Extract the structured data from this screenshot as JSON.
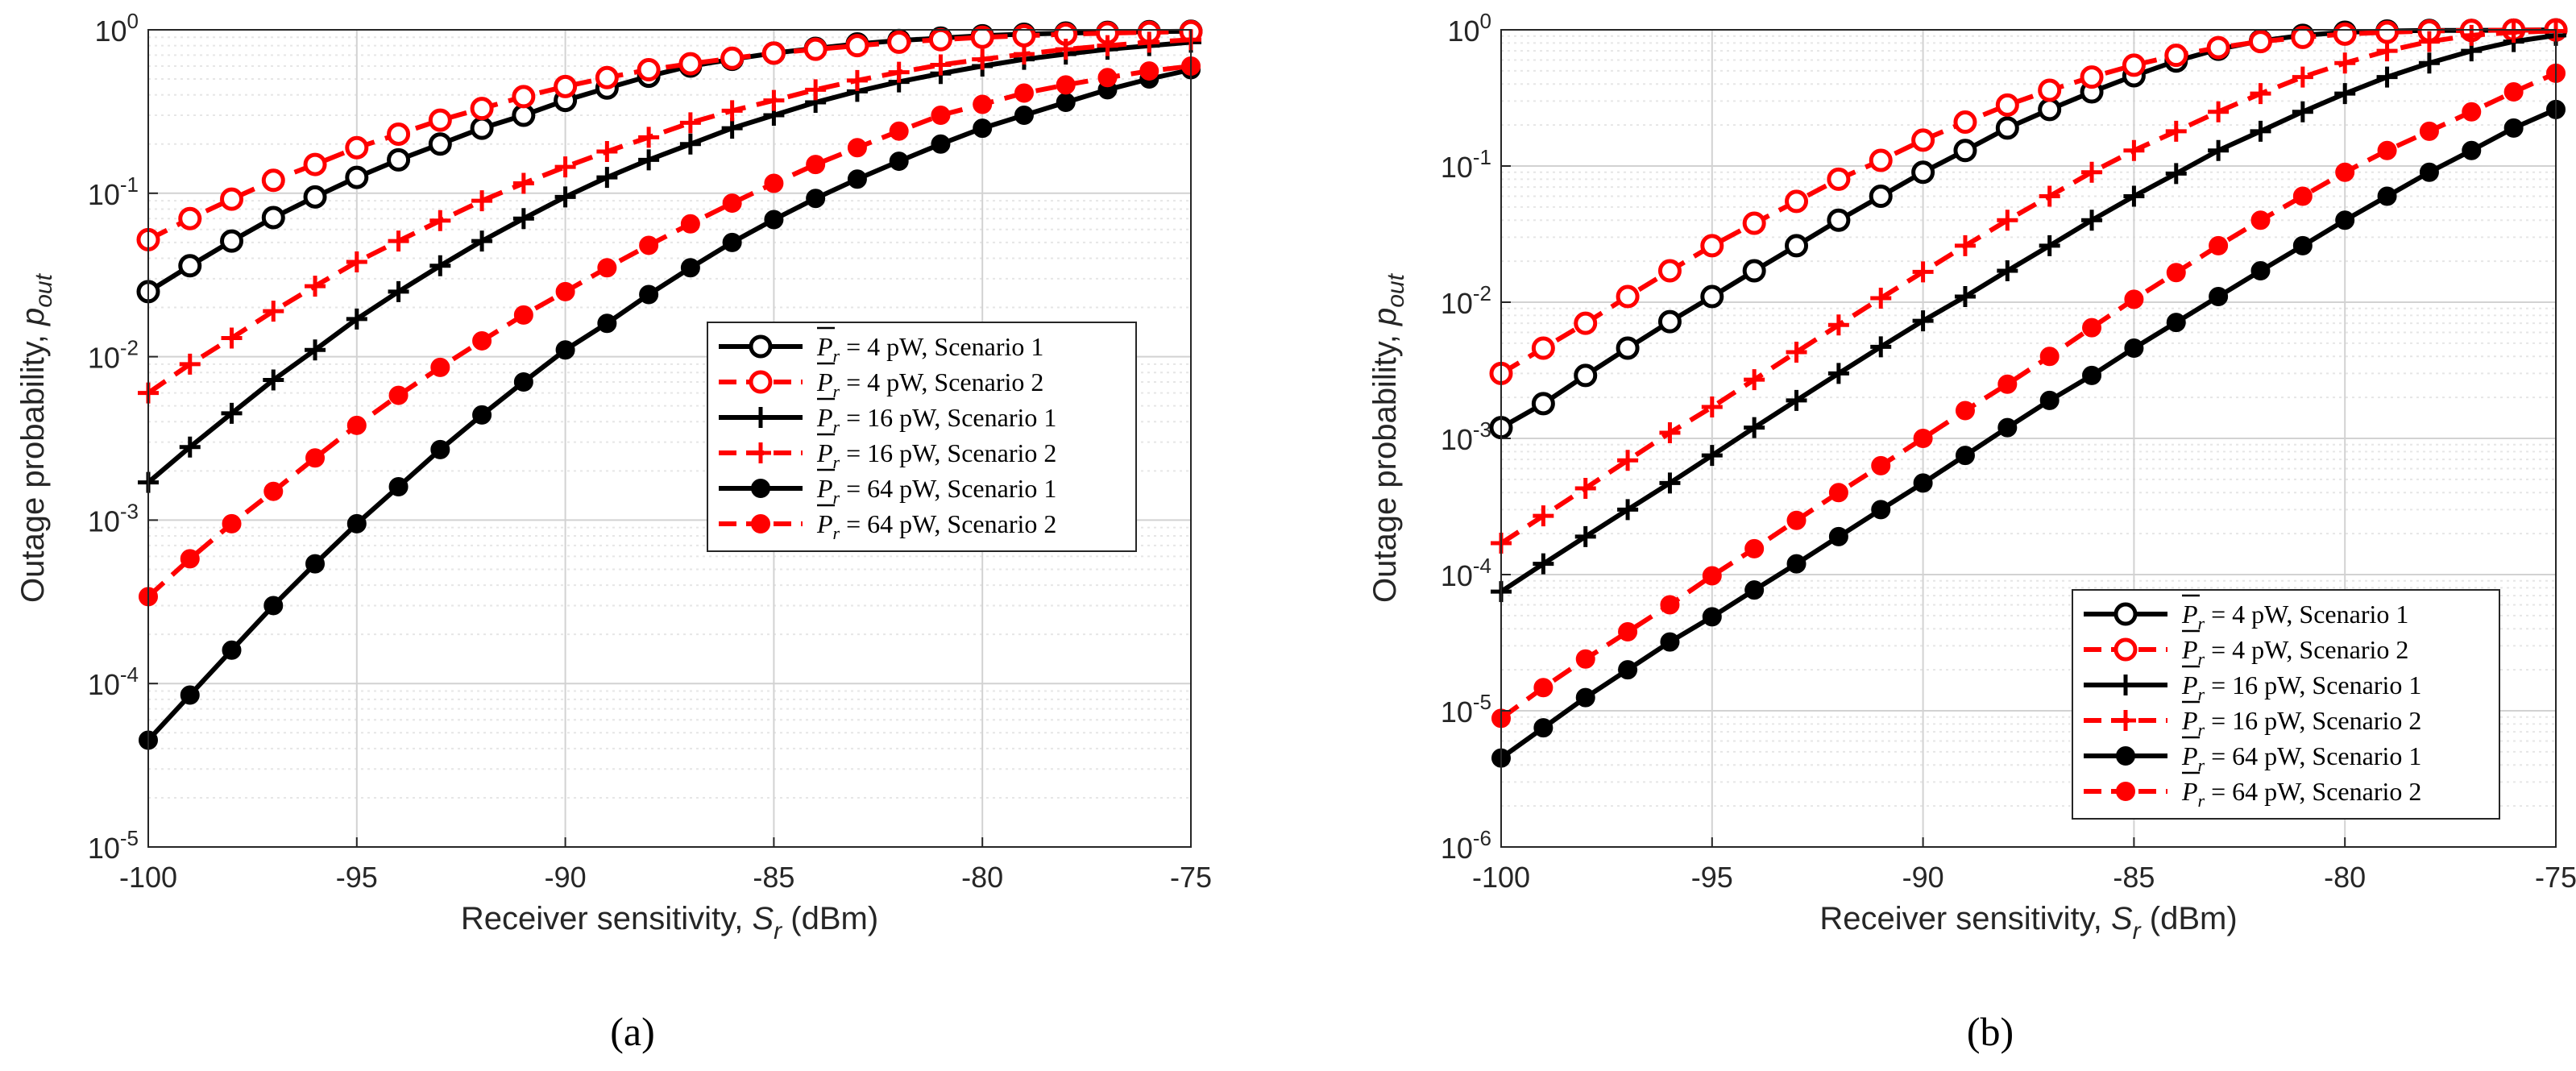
{
  "colors": {
    "black": "#000000",
    "red": "#ff0000",
    "grid_major": "#d2d2d2",
    "grid_minor": "#e6e6e6"
  },
  "chart_data": [
    {
      "type": "line",
      "panel_label": "(a)",
      "xlabel_main": "Receiver sensitivity, ",
      "xlabel_var": "S",
      "xlabel_sub": "r",
      "xlabel_unit": " (dBm)",
      "ylabel_main": "Outage probability, ",
      "ylabel_var": "p",
      "ylabel_sub": "out",
      "xlim": [
        -100,
        -75
      ],
      "ylim_log10": [
        -5,
        0
      ],
      "x_ticks": [
        -100,
        -95,
        -90,
        -85,
        -80,
        -75
      ],
      "x_tick_labels": [
        "-100",
        "-95",
        "-90",
        "-85",
        "-80",
        "-75"
      ],
      "y_tick_exponents": [
        -5,
        -4,
        -3,
        -2,
        -1,
        0
      ],
      "y_tick_base": "10",
      "y_tick_exp_labels": [
        "-5",
        "-4",
        "-3",
        "-2",
        "-1",
        "0"
      ],
      "grid": true,
      "legend_position": "center-right",
      "x": [
        -100,
        -99,
        -98,
        -97,
        -96,
        -95,
        -94,
        -93,
        -92,
        -91,
        -90,
        -89,
        -88,
        -87,
        -86,
        -85,
        -84,
        -83,
        -82,
        -81,
        -80,
        -79,
        -78,
        -77,
        -76,
        -75
      ],
      "series": [
        {
          "name_prefix": "P",
          "name_sub": "r",
          "name_rest": " = 4 pW, Scenario 1",
          "color": "#000000",
          "dash": "solid",
          "marker": "open-circle",
          "values": [
            0.025,
            0.036,
            0.051,
            0.071,
            0.095,
            0.125,
            0.16,
            0.2,
            0.25,
            0.3,
            0.37,
            0.44,
            0.52,
            0.6,
            0.66,
            0.72,
            0.77,
            0.82,
            0.86,
            0.89,
            0.92,
            0.94,
            0.955,
            0.965,
            0.975,
            0.98
          ]
        },
        {
          "name_prefix": "P",
          "name_sub": "r",
          "name_rest": " = 4 pW, Scenario 2",
          "color": "#ff0000",
          "dash": "dashed",
          "marker": "open-circle",
          "values": [
            0.052,
            0.07,
            0.092,
            0.12,
            0.15,
            0.19,
            0.23,
            0.28,
            0.33,
            0.39,
            0.45,
            0.51,
            0.57,
            0.62,
            0.67,
            0.72,
            0.76,
            0.8,
            0.84,
            0.87,
            0.9,
            0.92,
            0.94,
            0.955,
            0.965,
            0.975
          ]
        },
        {
          "name_prefix": "P",
          "name_sub": "r",
          "name_rest": " = 16 pW, Scenario 1",
          "color": "#000000",
          "dash": "solid",
          "marker": "plus",
          "values": [
            0.0017,
            0.0028,
            0.0045,
            0.0072,
            0.011,
            0.017,
            0.025,
            0.036,
            0.051,
            0.07,
            0.095,
            0.125,
            0.16,
            0.2,
            0.25,
            0.3,
            0.36,
            0.42,
            0.48,
            0.54,
            0.6,
            0.66,
            0.71,
            0.76,
            0.8,
            0.84
          ]
        },
        {
          "name_prefix": "P",
          "name_sub": "r",
          "name_rest": " = 16 pW, Scenario 2",
          "color": "#ff0000",
          "dash": "dashed",
          "marker": "plus",
          "values": [
            0.006,
            0.009,
            0.013,
            0.019,
            0.027,
            0.038,
            0.051,
            0.068,
            0.09,
            0.115,
            0.145,
            0.18,
            0.22,
            0.27,
            0.32,
            0.37,
            0.43,
            0.49,
            0.55,
            0.61,
            0.66,
            0.71,
            0.76,
            0.8,
            0.84,
            0.87
          ]
        },
        {
          "name_prefix": "P",
          "name_sub": "r",
          "name_rest": " = 64 pW, Scenario 1",
          "color": "#000000",
          "dash": "solid",
          "marker": "filled-circle",
          "values": [
            4.5e-05,
            8.5e-05,
            0.00016,
            0.0003,
            0.00054,
            0.00095,
            0.0016,
            0.0027,
            0.0044,
            0.007,
            0.011,
            0.016,
            0.024,
            0.035,
            0.05,
            0.069,
            0.093,
            0.122,
            0.157,
            0.2,
            0.25,
            0.3,
            0.36,
            0.43,
            0.5,
            0.57
          ]
        },
        {
          "name_prefix": "P",
          "name_sub": "r",
          "name_rest": " = 64 pW, Scenario 2",
          "color": "#ff0000",
          "dash": "dashed",
          "marker": "filled-circle",
          "values": [
            0.00034,
            0.00058,
            0.00095,
            0.0015,
            0.0024,
            0.0038,
            0.0058,
            0.0086,
            0.0125,
            0.018,
            0.025,
            0.035,
            0.048,
            0.065,
            0.087,
            0.115,
            0.15,
            0.19,
            0.24,
            0.3,
            0.35,
            0.41,
            0.46,
            0.51,
            0.56,
            0.6
          ]
        }
      ]
    },
    {
      "type": "line",
      "panel_label": "(b)",
      "xlabel_main": "Receiver sensitivity, ",
      "xlabel_var": "S",
      "xlabel_sub": "r",
      "xlabel_unit": " (dBm)",
      "ylabel_main": "Outage probability, ",
      "ylabel_var": "p",
      "ylabel_sub": "out",
      "xlim": [
        -100,
        -75
      ],
      "ylim_log10": [
        -6,
        0
      ],
      "x_ticks": [
        -100,
        -95,
        -90,
        -85,
        -80,
        -75
      ],
      "x_tick_labels": [
        "-100",
        "-95",
        "-90",
        "-85",
        "-80",
        "-75"
      ],
      "y_tick_exponents": [
        -6,
        -5,
        -4,
        -3,
        -2,
        -1,
        0
      ],
      "y_tick_base": "10",
      "y_tick_exp_labels": [
        "-6",
        "-5",
        "-4",
        "-3",
        "-2",
        "-1",
        "0"
      ],
      "grid": true,
      "legend_position": "bottom-right",
      "x": [
        -100,
        -99,
        -98,
        -97,
        -96,
        -95,
        -94,
        -93,
        -92,
        -91,
        -90,
        -89,
        -88,
        -87,
        -86,
        -85,
        -84,
        -83,
        -82,
        -81,
        -80,
        -79,
        -78,
        -77,
        -76,
        -75
      ],
      "series": [
        {
          "name_prefix": "P",
          "name_sub": "r",
          "name_rest": " = 4 pW, Scenario 1",
          "color": "#000000",
          "dash": "solid",
          "marker": "open-circle",
          "values": [
            0.0012,
            0.0018,
            0.0029,
            0.0046,
            0.0072,
            0.011,
            0.017,
            0.026,
            0.04,
            0.06,
            0.09,
            0.13,
            0.19,
            0.26,
            0.35,
            0.46,
            0.59,
            0.72,
            0.83,
            0.91,
            0.96,
            0.98,
            0.99,
            0.99,
            0.995,
            0.998
          ]
        },
        {
          "name_prefix": "P",
          "name_sub": "r",
          "name_rest": " = 4 pW, Scenario 2",
          "color": "#ff0000",
          "dash": "dashed",
          "marker": "open-circle",
          "values": [
            0.003,
            0.0046,
            0.007,
            0.011,
            0.017,
            0.026,
            0.038,
            0.055,
            0.08,
            0.11,
            0.155,
            0.21,
            0.28,
            0.36,
            0.45,
            0.55,
            0.65,
            0.74,
            0.82,
            0.88,
            0.93,
            0.96,
            0.98,
            0.99,
            0.995,
            0.998
          ]
        },
        {
          "name_prefix": "P",
          "name_sub": "r",
          "name_rest": " = 16 pW, Scenario 1",
          "color": "#000000",
          "dash": "solid",
          "marker": "plus",
          "values": [
            7.5e-05,
            0.00012,
            0.00019,
            0.0003,
            0.00047,
            0.00075,
            0.0012,
            0.0019,
            0.003,
            0.0047,
            0.0073,
            0.011,
            0.017,
            0.026,
            0.04,
            0.06,
            0.088,
            0.13,
            0.18,
            0.25,
            0.34,
            0.45,
            0.57,
            0.7,
            0.82,
            0.91
          ]
        },
        {
          "name_prefix": "P",
          "name_sub": "r",
          "name_rest": " = 16 pW, Scenario 2",
          "color": "#ff0000",
          "dash": "dashed",
          "marker": "plus",
          "values": [
            0.00017,
            0.00027,
            0.00043,
            0.00069,
            0.0011,
            0.0017,
            0.0027,
            0.0043,
            0.0068,
            0.0107,
            0.0167,
            0.026,
            0.04,
            0.06,
            0.09,
            0.13,
            0.18,
            0.25,
            0.34,
            0.45,
            0.57,
            0.7,
            0.82,
            0.91,
            0.96,
            0.98
          ]
        },
        {
          "name_prefix": "P",
          "name_sub": "r",
          "name_rest": " = 64 pW, Scenario 1",
          "color": "#000000",
          "dash": "solid",
          "marker": "filled-circle",
          "values": [
            4.5e-06,
            7.5e-06,
            1.25e-05,
            2e-05,
            3.2e-05,
            4.9e-05,
            7.7e-05,
            0.00012,
            0.00019,
            0.0003,
            0.00047,
            0.00075,
            0.0012,
            0.0019,
            0.0029,
            0.0046,
            0.0071,
            0.011,
            0.017,
            0.026,
            0.04,
            0.06,
            0.09,
            0.13,
            0.19,
            0.26
          ]
        },
        {
          "name_prefix": "P",
          "name_sub": "r",
          "name_rest": " = 64 pW, Scenario 2",
          "color": "#ff0000",
          "dash": "dashed",
          "marker": "filled-circle",
          "values": [
            8.8e-06,
            1.48e-05,
            2.4e-05,
            3.8e-05,
            6e-05,
            9.8e-05,
            0.000155,
            0.00025,
            0.0004,
            0.00063,
            0.001,
            0.0016,
            0.0025,
            0.004,
            0.0065,
            0.0105,
            0.0165,
            0.026,
            0.04,
            0.06,
            0.09,
            0.13,
            0.18,
            0.25,
            0.35,
            0.48
          ]
        }
      ]
    }
  ]
}
